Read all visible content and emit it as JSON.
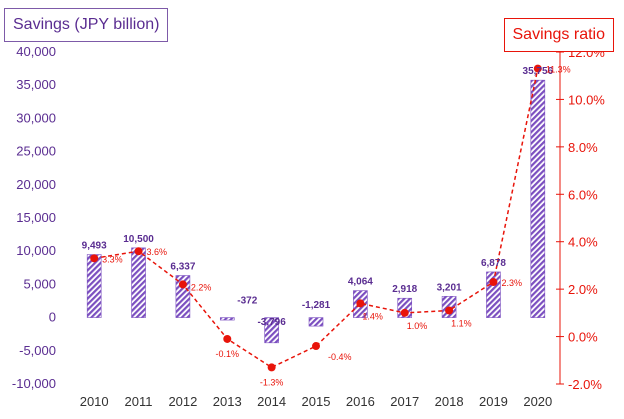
{
  "chart_data": {
    "type": "bar",
    "categories": [
      "2010",
      "2011",
      "2012",
      "2013",
      "2014",
      "2015",
      "2016",
      "2017",
      "2018",
      "2019",
      "2020"
    ],
    "series": [
      {
        "name": "Savings",
        "axis": "left",
        "values": [
          9493,
          10500,
          6337,
          -372,
          -3796,
          -1281,
          4064,
          2918,
          3201,
          6878,
          35756
        ],
        "labels": [
          "9,493",
          "10,500",
          "6,337",
          "-372",
          "-3,796",
          "-1,281",
          "4,064",
          "2,918",
          "3,201",
          "6,878",
          "35,756"
        ],
        "color": "#7b4fc0"
      },
      {
        "name": "Savings ratio",
        "axis": "right",
        "type": "line",
        "values": [
          3.3,
          3.6,
          2.2,
          -0.1,
          -1.3,
          -0.4,
          1.4,
          1.0,
          1.1,
          2.3,
          11.3
        ],
        "labels": [
          "3.3%",
          "3.6%",
          "2.2%",
          "-0.1%",
          "-1.3%",
          "-0.4%",
          "1.4%",
          "1.0%",
          "1.1%",
          "2.3%",
          "11.3%"
        ],
        "color": "#e8140a"
      }
    ],
    "left_axis": {
      "title": "Savings  (JPY billion)",
      "range": [
        -10000,
        40000
      ],
      "ticks": [
        40000,
        35000,
        30000,
        25000,
        20000,
        15000,
        10000,
        5000,
        0,
        -5000,
        -10000
      ],
      "tick_labels": [
        "40,000",
        "35,000",
        "30,000",
        "25,000",
        "20,000",
        "15,000",
        "10,000",
        "5,000",
        "0",
        "-5,000",
        "-10,000"
      ],
      "color": "#5a2d91"
    },
    "right_axis": {
      "title": "Savings ratio",
      "range": [
        -2.0,
        12.0
      ],
      "ticks": [
        12.0,
        10.0,
        8.0,
        6.0,
        4.0,
        2.0,
        0.0,
        -2.0
      ],
      "tick_labels": [
        "12.0%",
        "10.0%",
        "8.0%",
        "6.0%",
        "4.0%",
        "2.0%",
        "0.0%",
        "-2.0%"
      ],
      "color": "#e8140a"
    },
    "grid": false,
    "legend": "none"
  }
}
